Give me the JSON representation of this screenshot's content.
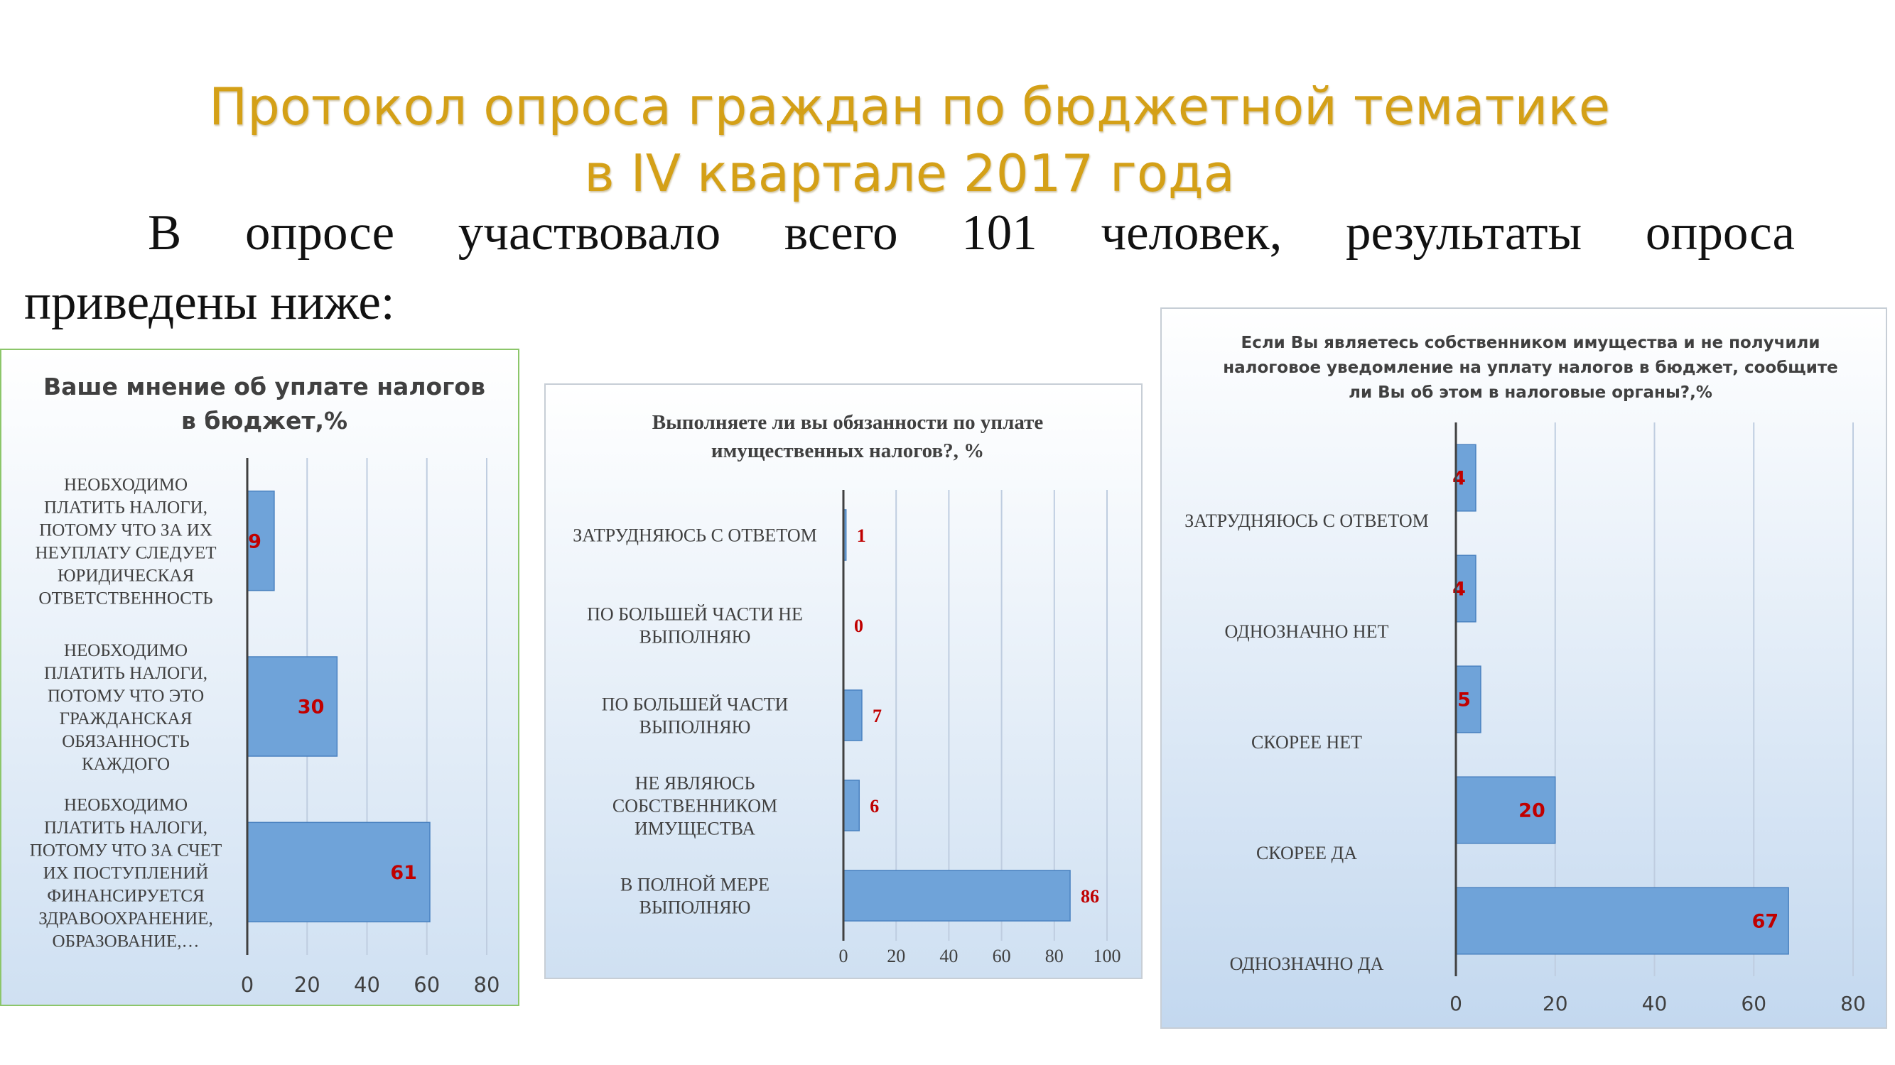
{
  "slide": {
    "title_line_1": "Протокол опроса граждан по бюджетной тематике",
    "title_line_2": "в IV квартале 2017 года",
    "intro_line_1": "В опросе участвовало всего 101 человек, результаты опроса",
    "intro_line_2": "приведены ниже:"
  },
  "colors": {
    "title": "#d4a017",
    "bar_fill": "#6fa3d9",
    "bar_stroke": "#4a82c0",
    "data_label": "#c00000",
    "axis": "#404040",
    "grid": "#bfcde0",
    "category_text": "#404040",
    "tick_text": "#404040"
  },
  "chart_data": [
    {
      "type": "bar",
      "orientation": "horizontal",
      "title_lines": [
        "Ваше мнение об уплате налогов",
        "в бюджет,%"
      ],
      "categories": [
        "НЕОБХОДИМО ПЛАТИТЬ НАЛОГИ, ПОТОМУ ЧТО ЗА ИХ НЕУПЛАТУ СЛЕДУЕТ ЮРИДИЧЕСКАЯ ОТВЕТСТВЕННОСТЬ",
        "НЕОБХОДИМО ПЛАТИТЬ НАЛОГИ, ПОТОМУ ЧТО ЭТО ГРАЖДАНСКАЯ ОБЯЗАННОСТЬ КАЖДОГО",
        "НЕОБХОДИМО ПЛАТИТЬ НАЛОГИ, ПОТОМУ ЧТО ЗА СЧЕТ ИХ ПОСТУПЛЕНИЙ ФИНАНСИРУЕТСЯ ЗДРАВООХРАНЕНИЕ, ОБРАЗОВАНИЕ,…"
      ],
      "category_lines": [
        [
          "НЕОБХОДИМО",
          "ПЛАТИТЬ НАЛОГИ,",
          "ПОТОМУ ЧТО ЗА ИХ",
          "НЕУПЛАТУ СЛЕДУЕТ",
          "ЮРИДИЧЕСКАЯ",
          "ОТВЕТСТВЕННОСТЬ"
        ],
        [
          "НЕОБХОДИМО",
          "ПЛАТИТЬ НАЛОГИ,",
          "ПОТОМУ ЧТО ЭТО",
          "ГРАЖДАНСКАЯ",
          "ОБЯЗАННОСТЬ",
          "КАЖДОГО"
        ],
        [
          "НЕОБХОДИМО",
          "ПЛАТИТЬ НАЛОГИ,",
          "ПОТОМУ ЧТО ЗА СЧЕТ",
          "ИХ ПОСТУПЛЕНИЙ",
          "ФИНАНСИРУЕТСЯ",
          "ЗДРАВООХРАНЕНИЕ,",
          "ОБРАЗОВАНИЕ,…"
        ]
      ],
      "values": [
        9,
        30,
        61
      ],
      "xlim": [
        0,
        80
      ],
      "ticks": [
        0,
        20,
        40,
        60,
        80
      ],
      "grid": true
    },
    {
      "type": "bar",
      "orientation": "horizontal",
      "title_lines": [
        "Выполняете ли вы обязанности по уплате",
        "имущественных налогов?, %"
      ],
      "categories": [
        "ЗАТРУДНЯЮСЬ С ОТВЕТОМ",
        "ПО БОЛЬШЕЙ ЧАСТИ НЕ ВЫПОЛНЯЮ",
        "ПО БОЛЬШЕЙ ЧАСТИ ВЫПОЛНЯЮ",
        "НЕ ЯВЛЯЮСЬ СОБСТВЕННИКОМ ИМУЩЕСТВА",
        "В ПОЛНОЙ МЕРЕ ВЫПОЛНЯЮ"
      ],
      "category_lines": [
        [
          "ЗАТРУДНЯЮСЬ С ОТВЕТОМ"
        ],
        [
          "ПО БОЛЬШЕЙ ЧАСТИ НЕ",
          "ВЫПОЛНЯЮ"
        ],
        [
          "ПО БОЛЬШЕЙ ЧАСТИ",
          "ВЫПОЛНЯЮ"
        ],
        [
          "НЕ ЯВЛЯЮСЬ",
          "СОБСТВЕННИКОМ",
          "ИМУЩЕСТВА"
        ],
        [
          "В ПОЛНОЙ МЕРЕ",
          "ВЫПОЛНЯЮ"
        ]
      ],
      "values": [
        1,
        0,
        7,
        6,
        86
      ],
      "xlim": [
        0,
        100
      ],
      "ticks": [
        0,
        20,
        40,
        60,
        80,
        100
      ],
      "grid": true
    },
    {
      "type": "bar",
      "orientation": "horizontal",
      "title_lines": [
        "Если Вы являетесь собственником имущества и не получили",
        "налоговое уведомление на уплату налогов в бюджет, сообщите",
        "ли Вы об этом в налоговые органы?,%"
      ],
      "categories": [
        "ЗАТРУДНЯЮСЬ С ОТВЕТОМ",
        "ОДНОЗНАЧНО НЕТ",
        "СКОРЕЕ НЕТ",
        "СКОРЕЕ ДА",
        "ОДНОЗНАЧНО ДА"
      ],
      "category_lines": [
        [
          "ЗАТРУДНЯЮСЬ С ОТВЕТОМ"
        ],
        [
          "ОДНОЗНАЧНО НЕТ"
        ],
        [
          "СКОРЕЕ НЕТ"
        ],
        [
          "СКОРЕЕ ДА"
        ],
        [
          "ОДНОЗНАЧНО ДА"
        ]
      ],
      "values": [
        4,
        4,
        5,
        20,
        67
      ],
      "xlim": [
        0,
        80
      ],
      "ticks": [
        0,
        20,
        40,
        60,
        80
      ],
      "grid": true
    }
  ]
}
